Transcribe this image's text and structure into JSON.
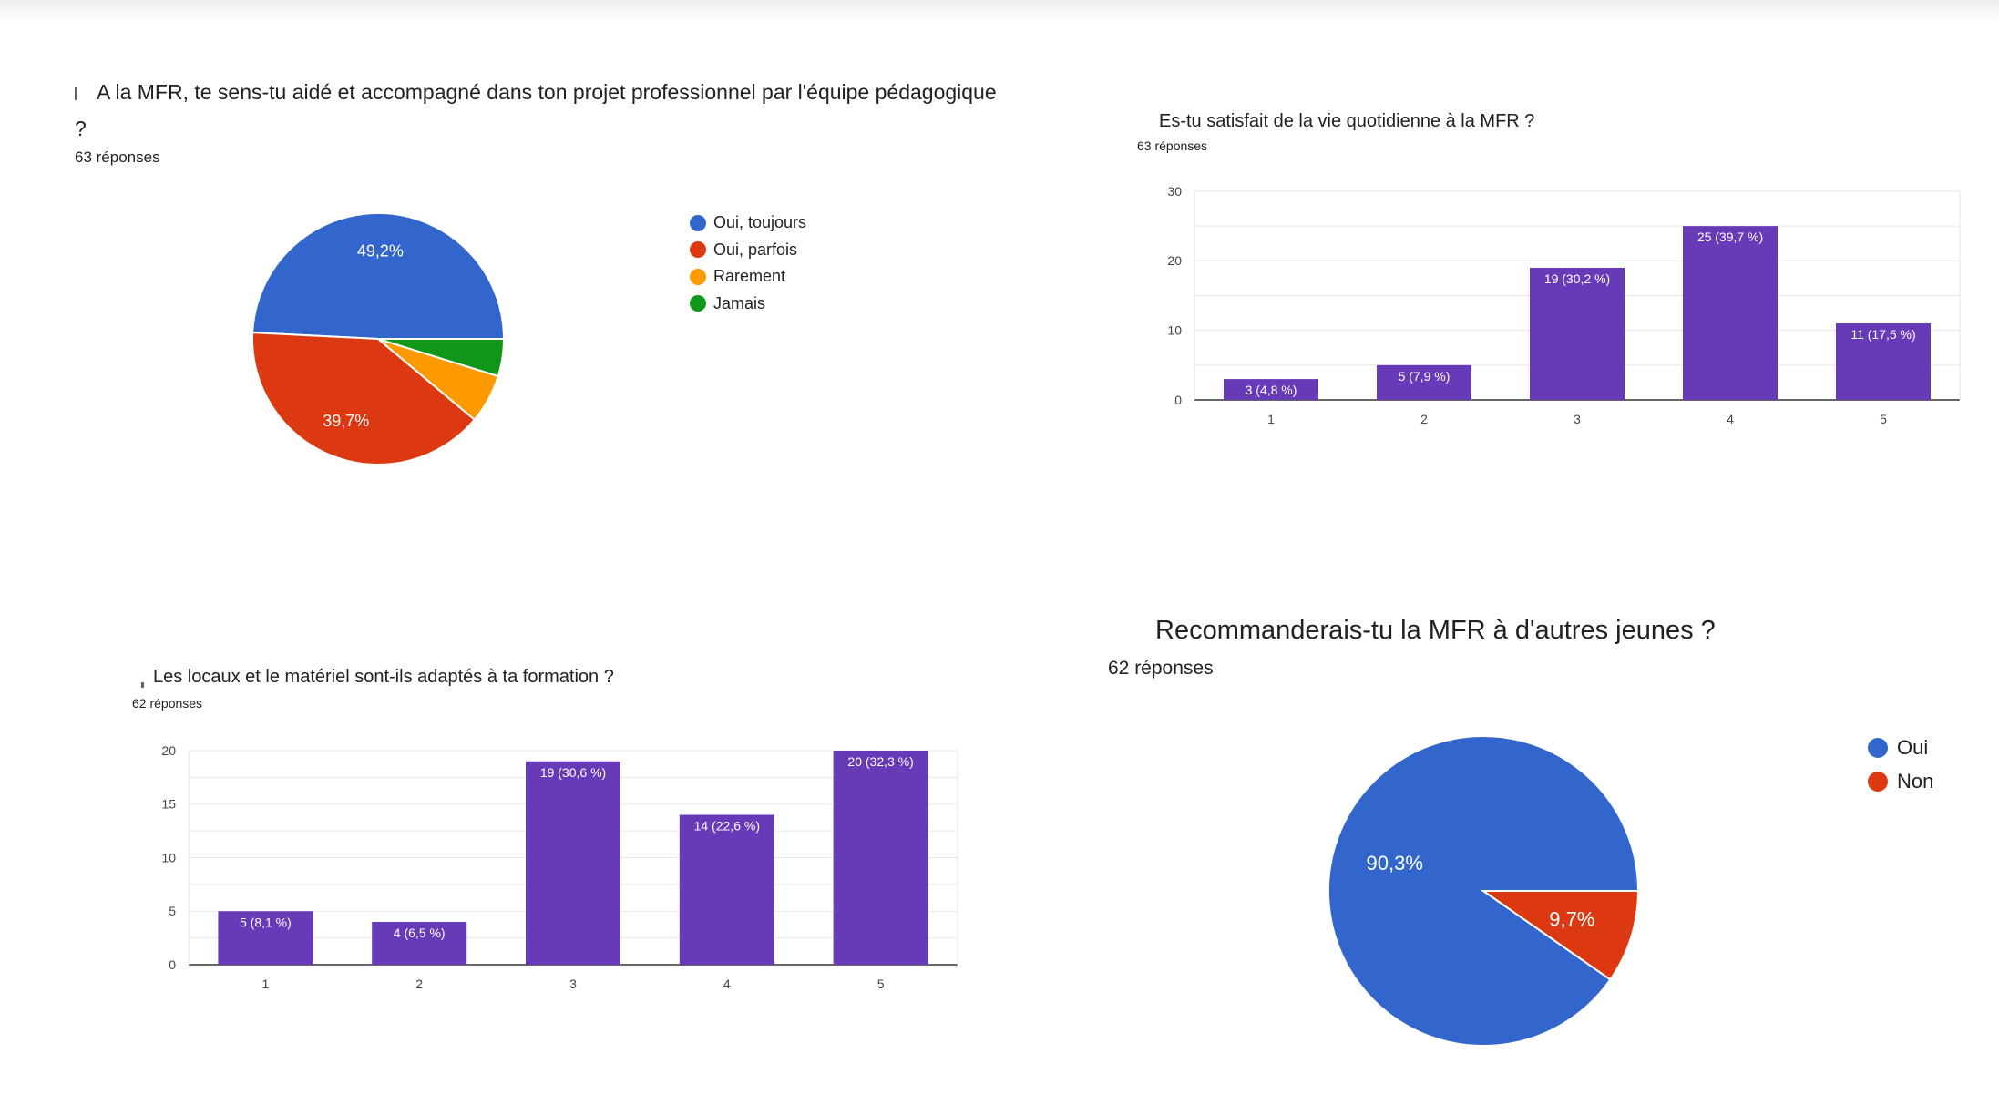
{
  "chart_data": [
    {
      "type": "pie",
      "title": "A la MFR, te sens-tu aidé et accompagné dans ton projet professionnel par l'équipe pédagogique",
      "title_cont": "?",
      "subtitle": "63 réponses",
      "categories": [
        "Oui, toujours",
        "Oui, parfois",
        "Rarement",
        "Jamais"
      ],
      "values": [
        49.2,
        39.7,
        6.3,
        4.8
      ],
      "labels": [
        "49,2%",
        "39,7%",
        "",
        ""
      ],
      "colors": [
        "#3366cc",
        "#dc3912",
        "#ff9900",
        "#109618"
      ],
      "legend": "right"
    },
    {
      "type": "bar",
      "title": "Es-tu satisfait de la vie quotidienne à la MFR ?",
      "subtitle": "63 réponses",
      "categories": [
        "1",
        "2",
        "3",
        "4",
        "5"
      ],
      "values": [
        3,
        5,
        19,
        25,
        11
      ],
      "labels": [
        "3 (4,8 %)",
        "5 (7,9 %)",
        "19 (30,2 %)",
        "25 (39,7 %)",
        "11 (17,5 %)"
      ],
      "ylim": [
        0,
        30
      ],
      "yticks": [
        "0",
        "10",
        "20",
        "30"
      ],
      "color": "#673ab7",
      "grid": true
    },
    {
      "type": "bar",
      "title": "Les locaux et le matériel sont-ils adaptés à ta formation ?",
      "subtitle": "62 réponses",
      "categories": [
        "1",
        "2",
        "3",
        "4",
        "5"
      ],
      "values": [
        5,
        4,
        19,
        14,
        20
      ],
      "labels": [
        "5 (8,1 %)",
        "4 (6,5 %)",
        "19 (30,6 %)",
        "14 (22,6 %)",
        "20 (32,3 %)"
      ],
      "ylim": [
        0,
        20
      ],
      "yticks": [
        "0",
        "5",
        "10",
        "15",
        "20"
      ],
      "color": "#673ab7",
      "grid": true
    },
    {
      "type": "pie",
      "title": "Recommanderais-tu la MFR à d'autres jeunes ?",
      "subtitle": "62 réponses",
      "categories": [
        "Oui",
        "Non"
      ],
      "values": [
        90.3,
        9.7
      ],
      "labels": [
        "90,3%",
        "9,7%"
      ],
      "colors": [
        "#3366cc",
        "#dc3912"
      ],
      "legend": "right"
    }
  ]
}
